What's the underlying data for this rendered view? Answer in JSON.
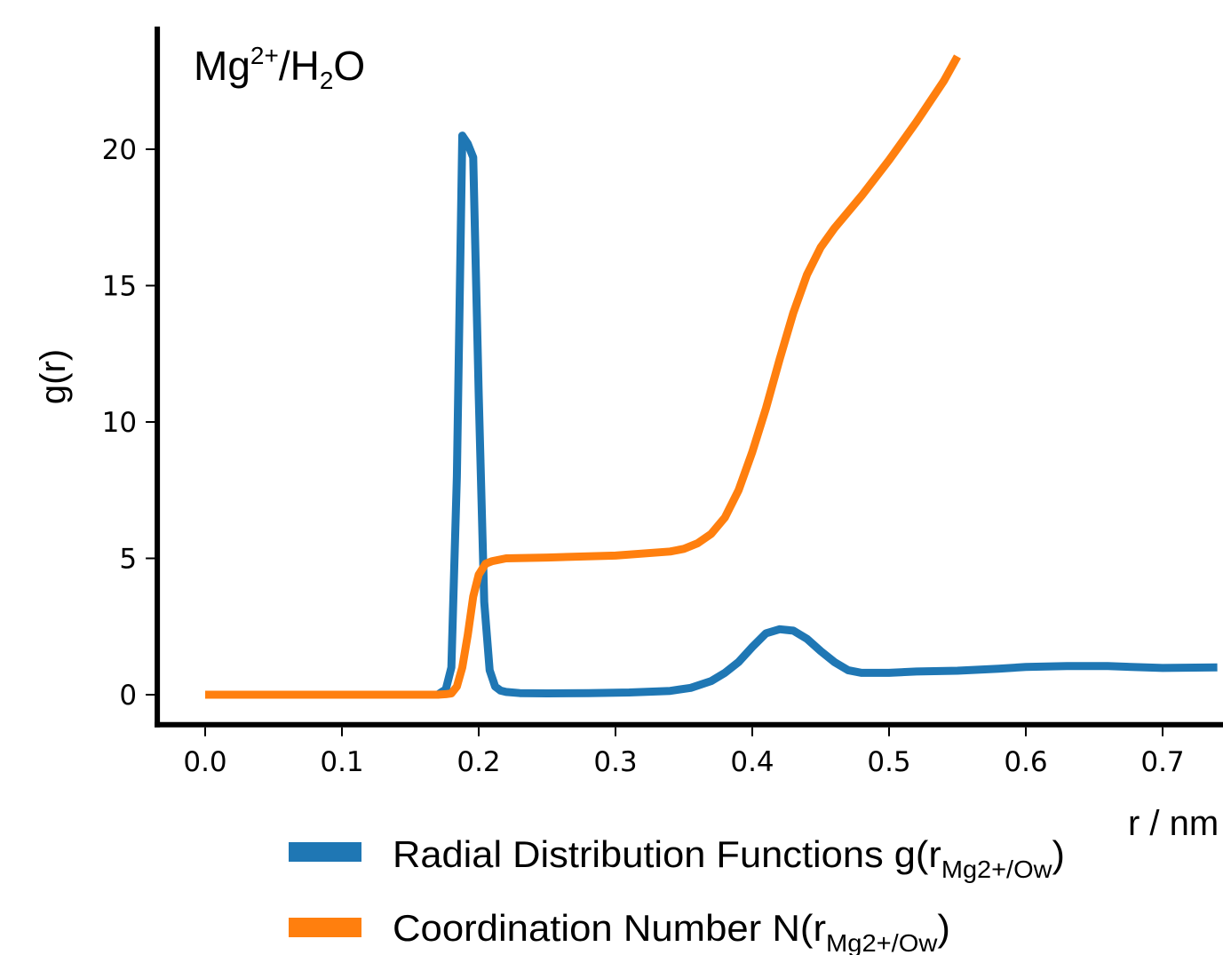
{
  "chart_data": {
    "type": "line",
    "panel_label": {
      "base": "Mg",
      "sup": "2+",
      "mid": "/H",
      "sub": "2",
      "end": "O"
    },
    "xlabel": "r / nm",
    "ylabel": "g(r)",
    "xlim": [
      -0.035,
      0.74
    ],
    "ylim": [
      -1.1,
      24.5
    ],
    "xticks": [
      "0.0",
      "0.1",
      "0.2",
      "0.3",
      "0.4",
      "0.5",
      "0.6",
      "0.7"
    ],
    "yticks": [
      "0",
      "5",
      "10",
      "15",
      "20"
    ],
    "grid": false,
    "legend_position": "bottom",
    "series": [
      {
        "name": "Radial Distribution Functions g(r",
        "name_sub": "Mg2+/Ow",
        "name_suffix": ")",
        "color": "#1f77b4",
        "x": [
          0.0,
          0.17,
          0.176,
          0.18,
          0.184,
          0.188,
          0.192,
          0.196,
          0.2,
          0.204,
          0.208,
          0.212,
          0.216,
          0.22,
          0.23,
          0.25,
          0.28,
          0.31,
          0.34,
          0.355,
          0.37,
          0.38,
          0.39,
          0.4,
          0.41,
          0.42,
          0.43,
          0.44,
          0.45,
          0.46,
          0.47,
          0.48,
          0.5,
          0.52,
          0.55,
          0.58,
          0.6,
          0.63,
          0.66,
          0.7,
          0.74
        ],
        "y": [
          0.0,
          0.0,
          0.2,
          1.0,
          8.0,
          20.5,
          20.2,
          19.7,
          11.0,
          3.4,
          0.9,
          0.3,
          0.15,
          0.1,
          0.06,
          0.05,
          0.06,
          0.08,
          0.14,
          0.25,
          0.5,
          0.8,
          1.2,
          1.75,
          2.25,
          2.4,
          2.35,
          2.05,
          1.6,
          1.2,
          0.9,
          0.8,
          0.8,
          0.85,
          0.88,
          0.95,
          1.02,
          1.05,
          1.05,
          0.98,
          1.0
        ]
      },
      {
        "name": "Coordination Number N(r",
        "name_sub": "Mg2+/Ow",
        "name_suffix": ")",
        "color": "#ff7f0e",
        "x": [
          0.0,
          0.17,
          0.176,
          0.18,
          0.184,
          0.188,
          0.192,
          0.196,
          0.2,
          0.205,
          0.21,
          0.22,
          0.25,
          0.3,
          0.34,
          0.35,
          0.36,
          0.37,
          0.38,
          0.39,
          0.4,
          0.41,
          0.42,
          0.43,
          0.44,
          0.45,
          0.46,
          0.47,
          0.48,
          0.5,
          0.52,
          0.54,
          0.55
        ],
        "y": [
          0.0,
          0.0,
          0.02,
          0.05,
          0.3,
          1.0,
          2.2,
          3.6,
          4.4,
          4.8,
          4.9,
          5.0,
          5.03,
          5.1,
          5.25,
          5.35,
          5.55,
          5.9,
          6.5,
          7.5,
          8.9,
          10.5,
          12.3,
          14.0,
          15.4,
          16.4,
          17.1,
          17.7,
          18.3,
          19.6,
          21.0,
          22.5,
          23.4
        ]
      }
    ]
  }
}
